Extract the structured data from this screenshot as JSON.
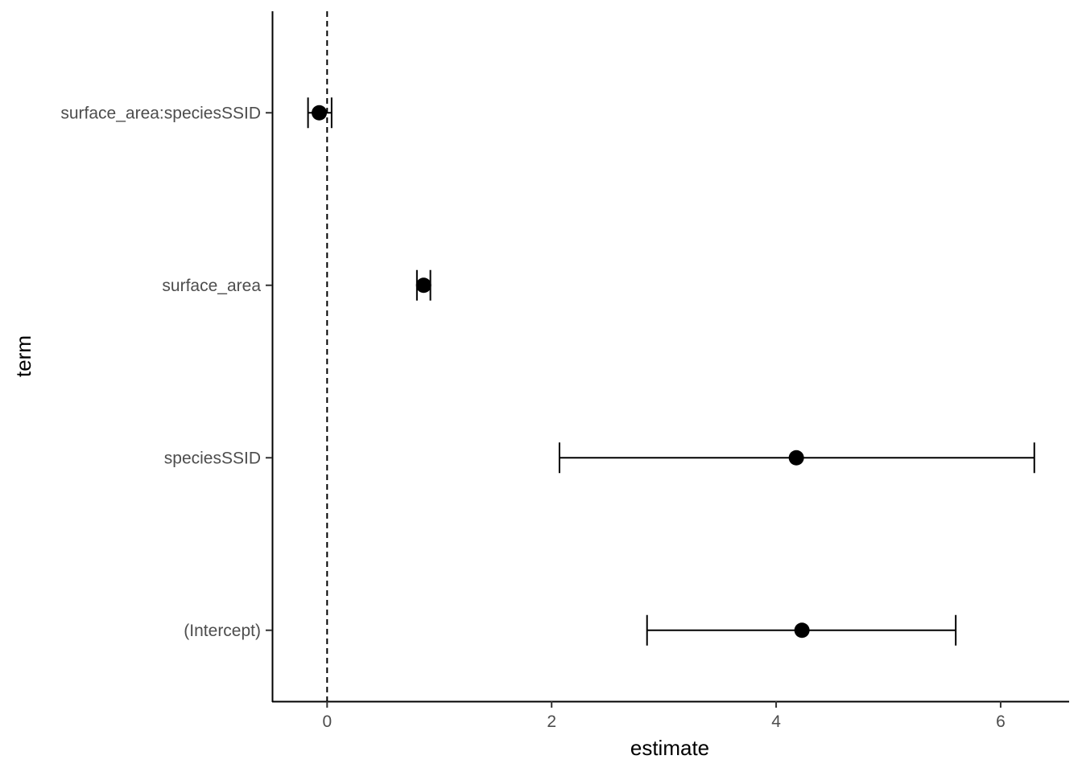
{
  "chart_data": {
    "type": "scatter",
    "subtype": "coefficient-plot-with-error-bars",
    "title": "",
    "xlabel": "estimate",
    "ylabel": "term",
    "xlim": [
      -0.49,
      6.61
    ],
    "x_ticks": [
      0,
      2,
      4,
      6
    ],
    "reference_line": {
      "x": 0,
      "style": "dashed"
    },
    "grid": false,
    "legend": "none",
    "point_color": "#000000",
    "terms": [
      {
        "term": "surface_area:speciesSSID",
        "estimate": -0.07,
        "conf_low": -0.17,
        "conf_high": 0.04
      },
      {
        "term": "surface_area",
        "estimate": 0.86,
        "conf_low": 0.8,
        "conf_high": 0.92
      },
      {
        "term": "speciesSSID",
        "estimate": 4.18,
        "conf_low": 2.07,
        "conf_high": 6.3
      },
      {
        "term": "(Intercept)",
        "estimate": 4.23,
        "conf_low": 2.85,
        "conf_high": 5.6
      }
    ]
  }
}
